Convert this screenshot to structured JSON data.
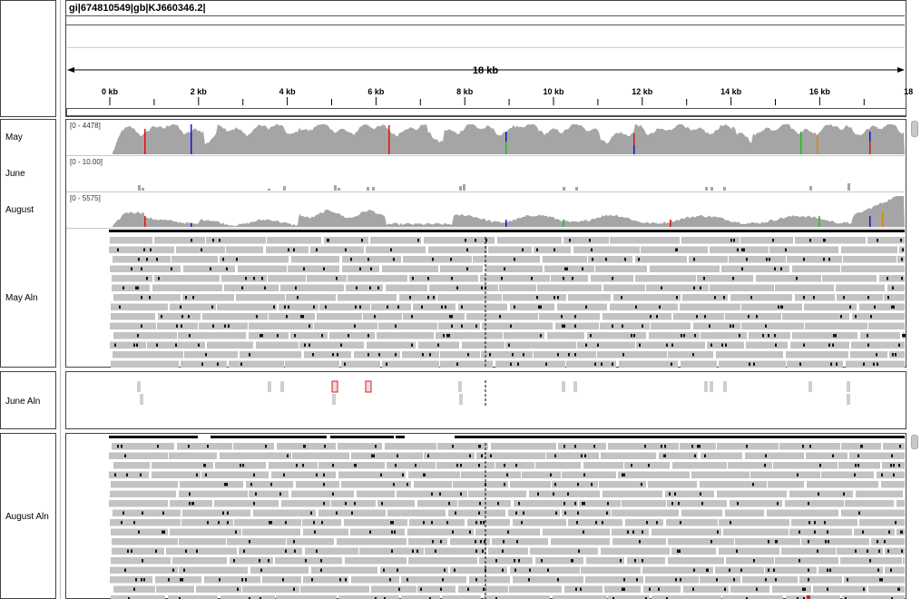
{
  "header": {
    "sequence": "gi|674810549|gb|KJ660346.2|",
    "span_label": "18 kb",
    "ticks": [
      "0 kb",
      "2 kb",
      "4 kb",
      "6 kb",
      "8 kb",
      "10 kb",
      "12 kb",
      "14 kb",
      "16 kb",
      "18"
    ]
  },
  "tracks": [
    {
      "name": "May",
      "range": "[0 - 4478]"
    },
    {
      "name": "June",
      "range": "[0 - 10.00]"
    },
    {
      "name": "August",
      "range": "[0 - 5575]"
    }
  ],
  "alignment_panels": [
    {
      "name": "May Aln"
    },
    {
      "name": "June Aln"
    },
    {
      "name": "August Aln"
    }
  ],
  "colors": {
    "coverage": "#a5a5a5",
    "read": "#c3c3c3",
    "A": "#22bb22",
    "C": "#1111dd",
    "G": "#d28c00",
    "T": "#dd1111"
  }
}
